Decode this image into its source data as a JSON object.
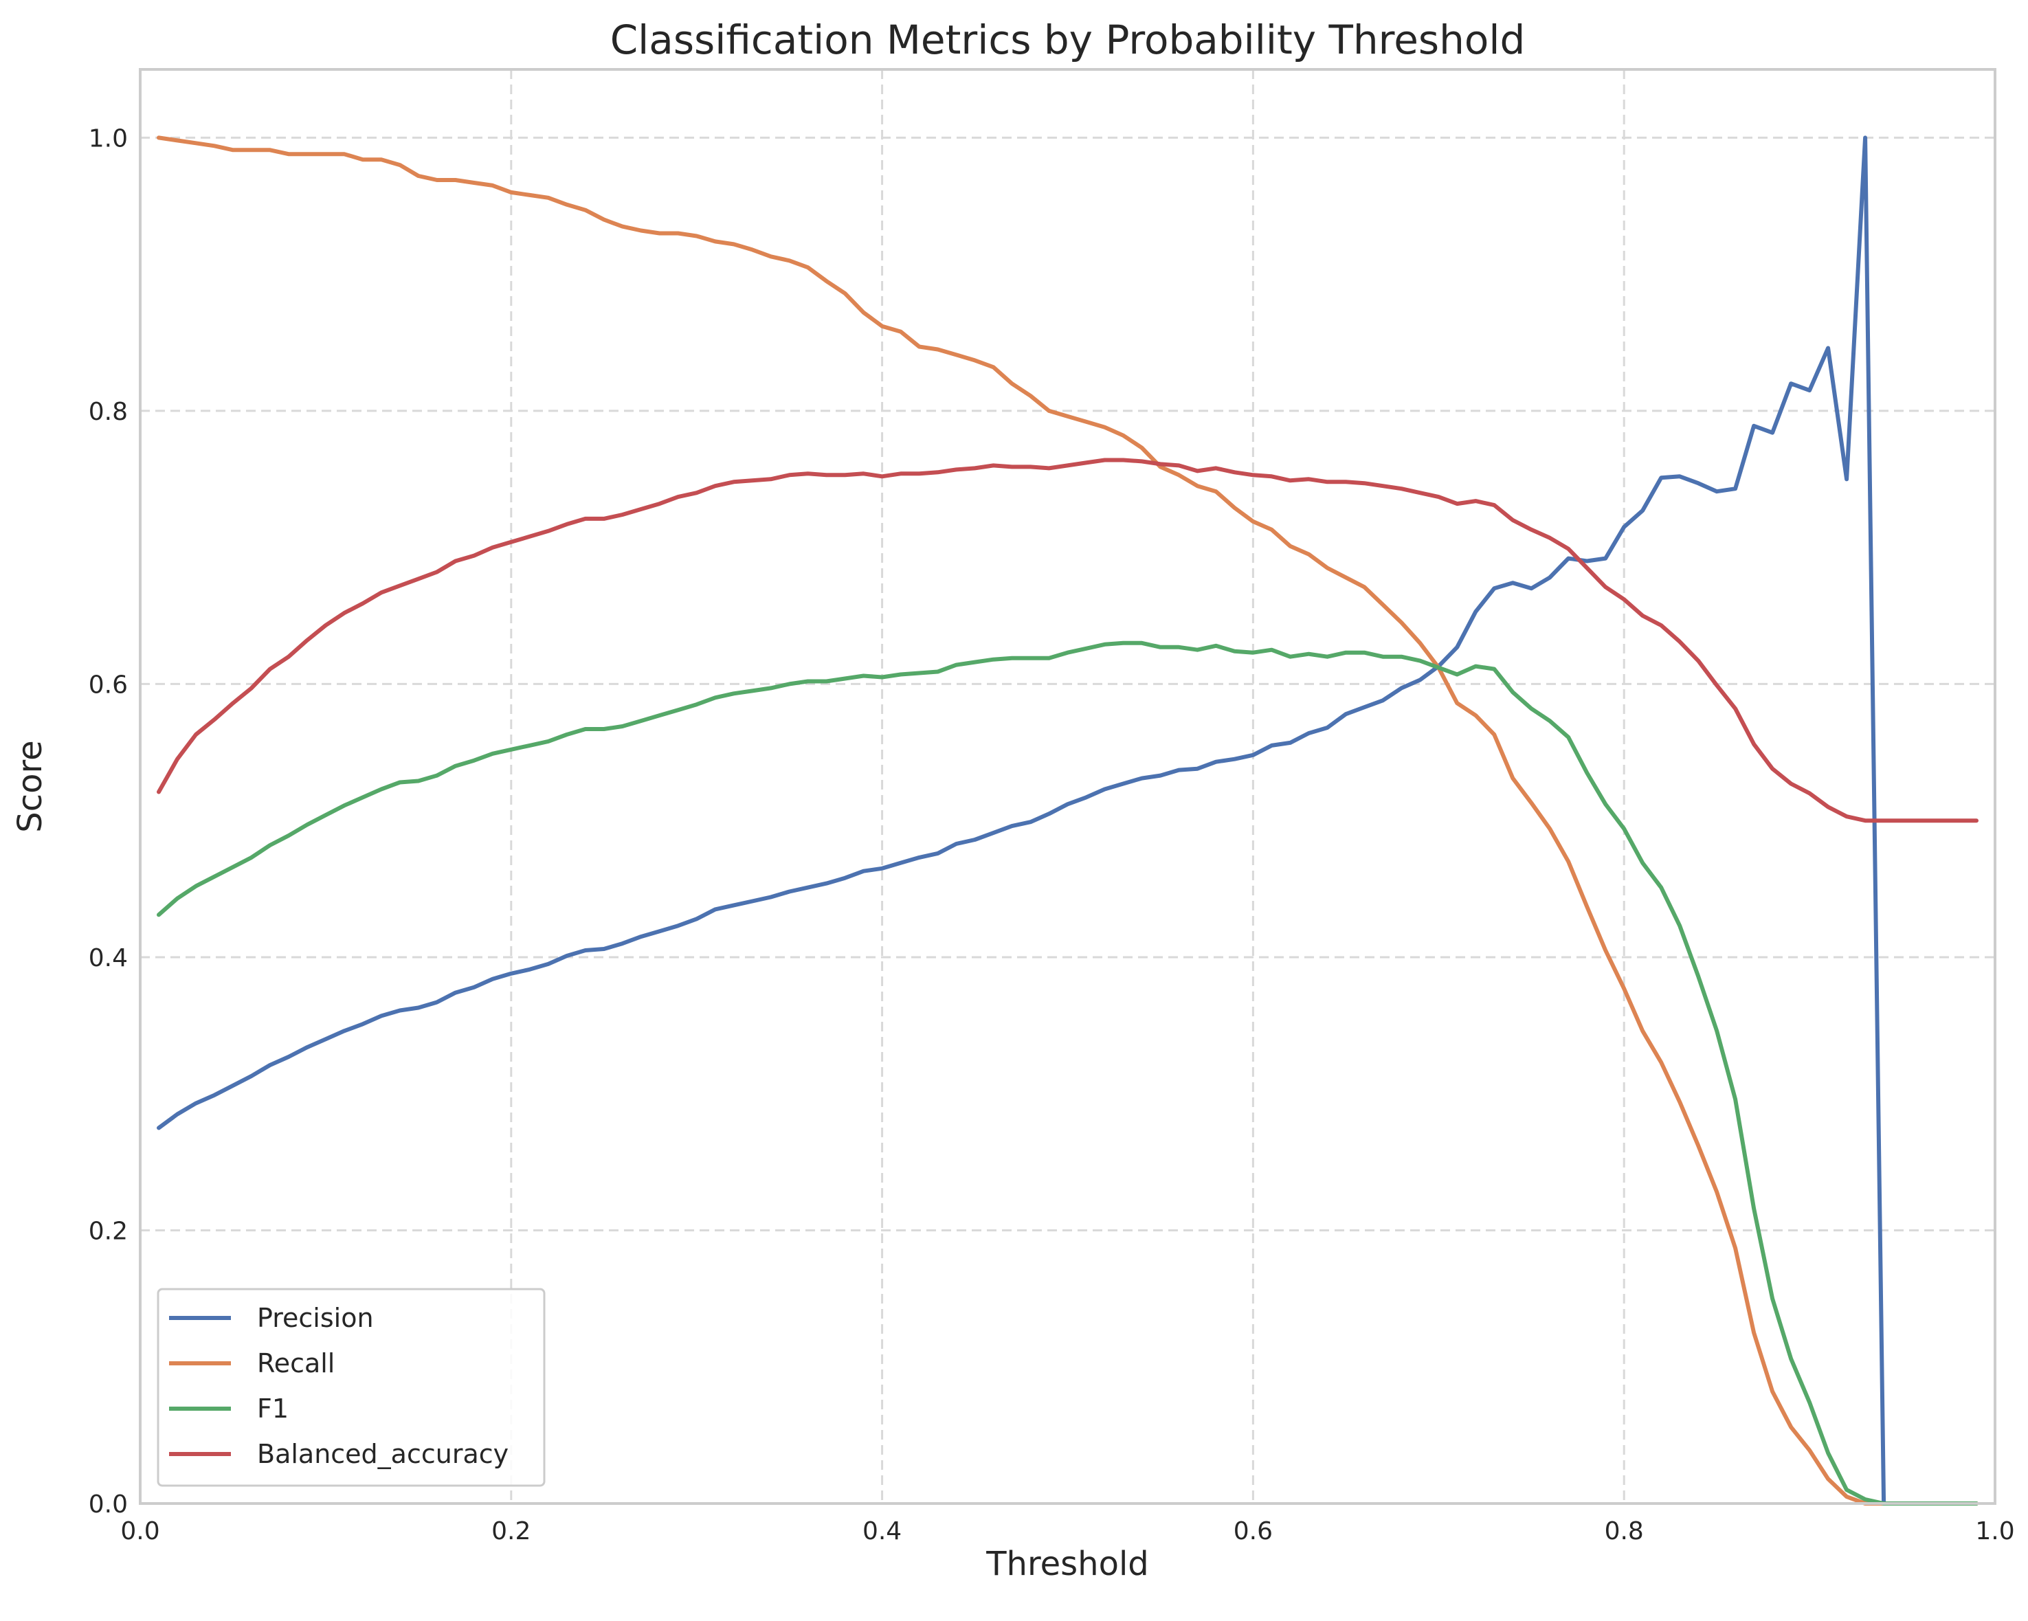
{
  "chart_data": {
    "type": "line",
    "title": "Classification Metrics by Probability Threshold",
    "xlabel": "Threshold",
    "ylabel": "Score",
    "xlim": [
      0.0,
      1.0
    ],
    "ylim": [
      0.0,
      1.05
    ],
    "xticks": [
      "0.0",
      "0.2",
      "0.4",
      "0.6",
      "0.8",
      "1.0"
    ],
    "yticks": [
      "0.0",
      "0.2",
      "0.4",
      "0.6",
      "0.8",
      "1.0"
    ],
    "grid": true,
    "legend_position": "lower-left",
    "x": [
      0.01,
      0.02,
      0.03,
      0.04,
      0.05,
      0.06,
      0.07,
      0.08,
      0.09,
      0.1,
      0.11,
      0.12,
      0.13,
      0.14,
      0.15,
      0.16,
      0.17,
      0.18,
      0.19,
      0.2,
      0.21,
      0.22,
      0.23,
      0.24,
      0.25,
      0.26,
      0.27,
      0.28,
      0.29,
      0.3,
      0.31,
      0.32,
      0.33,
      0.34,
      0.35,
      0.36,
      0.37,
      0.38,
      0.39,
      0.4,
      0.41,
      0.42,
      0.43,
      0.44,
      0.45,
      0.46,
      0.47,
      0.48,
      0.49,
      0.5,
      0.51,
      0.52,
      0.53,
      0.54,
      0.55,
      0.56,
      0.57,
      0.58,
      0.59,
      0.6,
      0.61,
      0.62,
      0.63,
      0.64,
      0.65,
      0.66,
      0.67,
      0.68,
      0.69,
      0.7,
      0.71,
      0.72,
      0.73,
      0.74,
      0.75,
      0.76,
      0.77,
      0.78,
      0.79,
      0.8,
      0.81,
      0.82,
      0.83,
      0.84,
      0.85,
      0.86,
      0.87,
      0.88,
      0.89,
      0.9,
      0.91,
      0.92,
      0.93,
      0.94,
      0.95,
      0.96,
      0.97,
      0.98,
      0.99
    ],
    "series": [
      {
        "name": "Precision",
        "color": "#4c72b0",
        "values": [
          0.275,
          0.285,
          0.293,
          0.299,
          0.306,
          0.313,
          0.321,
          0.327,
          0.334,
          0.34,
          0.346,
          0.351,
          0.357,
          0.361,
          0.363,
          0.367,
          0.374,
          0.378,
          0.384,
          0.388,
          0.391,
          0.395,
          0.401,
          0.405,
          0.406,
          0.41,
          0.415,
          0.419,
          0.423,
          0.428,
          0.435,
          0.438,
          0.441,
          0.444,
          0.448,
          0.451,
          0.454,
          0.458,
          0.463,
          0.465,
          0.469,
          0.473,
          0.476,
          0.483,
          0.486,
          0.491,
          0.496,
          0.499,
          0.505,
          0.512,
          0.517,
          0.523,
          0.527,
          0.531,
          0.533,
          0.537,
          0.538,
          0.543,
          0.545,
          0.548,
          0.555,
          0.557,
          0.564,
          0.568,
          0.578,
          0.583,
          0.588,
          0.597,
          0.603,
          0.613,
          0.627,
          0.653,
          0.67,
          0.674,
          0.67,
          0.678,
          0.692,
          0.69,
          0.692,
          0.715,
          0.727,
          0.751,
          0.752,
          0.747,
          0.741,
          0.743,
          0.789,
          0.784,
          0.82,
          0.815,
          0.846,
          0.75,
          1.0,
          0.0,
          0.0,
          0.0,
          0.0,
          0.0,
          0.0
        ]
      },
      {
        "name": "Recall",
        "color": "#dd8452",
        "values": [
          1.0,
          0.998,
          0.996,
          0.994,
          0.991,
          0.991,
          0.991,
          0.988,
          0.988,
          0.988,
          0.988,
          0.984,
          0.984,
          0.98,
          0.972,
          0.969,
          0.969,
          0.967,
          0.965,
          0.96,
          0.958,
          0.956,
          0.951,
          0.947,
          0.94,
          0.935,
          0.932,
          0.93,
          0.93,
          0.928,
          0.924,
          0.922,
          0.918,
          0.913,
          0.91,
          0.905,
          0.895,
          0.886,
          0.872,
          0.862,
          0.858,
          0.847,
          0.845,
          0.841,
          0.837,
          0.832,
          0.82,
          0.811,
          0.8,
          0.796,
          0.792,
          0.788,
          0.782,
          0.773,
          0.759,
          0.753,
          0.745,
          0.741,
          0.729,
          0.719,
          0.713,
          0.701,
          0.695,
          0.685,
          0.678,
          0.671,
          0.658,
          0.645,
          0.63,
          0.612,
          0.586,
          0.577,
          0.563,
          0.531,
          0.513,
          0.494,
          0.47,
          0.437,
          0.405,
          0.377,
          0.346,
          0.323,
          0.294,
          0.262,
          0.228,
          0.187,
          0.125,
          0.082,
          0.056,
          0.039,
          0.018,
          0.005,
          0.0,
          0.0,
          0.0,
          0.0,
          0.0,
          0.0,
          0.0
        ]
      },
      {
        "name": "F1",
        "color": "#55a868",
        "values": [
          0.431,
          0.443,
          0.452,
          0.459,
          0.466,
          0.473,
          0.482,
          0.489,
          0.497,
          0.504,
          0.511,
          0.517,
          0.523,
          0.528,
          0.529,
          0.533,
          0.54,
          0.544,
          0.549,
          0.552,
          0.555,
          0.558,
          0.563,
          0.567,
          0.567,
          0.569,
          0.573,
          0.577,
          0.581,
          0.585,
          0.59,
          0.593,
          0.595,
          0.597,
          0.6,
          0.602,
          0.602,
          0.604,
          0.606,
          0.605,
          0.607,
          0.608,
          0.609,
          0.614,
          0.616,
          0.618,
          0.619,
          0.619,
          0.619,
          0.623,
          0.626,
          0.629,
          0.63,
          0.63,
          0.627,
          0.627,
          0.625,
          0.628,
          0.624,
          0.623,
          0.625,
          0.62,
          0.622,
          0.62,
          0.623,
          0.623,
          0.62,
          0.62,
          0.617,
          0.612,
          0.607,
          0.613,
          0.611,
          0.594,
          0.582,
          0.573,
          0.561,
          0.535,
          0.512,
          0.494,
          0.469,
          0.451,
          0.423,
          0.386,
          0.346,
          0.296,
          0.216,
          0.15,
          0.106,
          0.074,
          0.037,
          0.01,
          0.003,
          0.0,
          0.0,
          0.0,
          0.0,
          0.0,
          0.0
        ]
      },
      {
        "name": "Balanced_accuracy",
        "color": "#c44e52",
        "values": [
          0.521,
          0.545,
          0.563,
          0.574,
          0.586,
          0.597,
          0.611,
          0.62,
          0.632,
          0.643,
          0.652,
          0.659,
          0.667,
          0.672,
          0.677,
          0.682,
          0.69,
          0.694,
          0.7,
          0.704,
          0.708,
          0.712,
          0.717,
          0.721,
          0.721,
          0.724,
          0.728,
          0.732,
          0.737,
          0.74,
          0.745,
          0.748,
          0.749,
          0.75,
          0.753,
          0.754,
          0.753,
          0.753,
          0.754,
          0.752,
          0.754,
          0.754,
          0.755,
          0.757,
          0.758,
          0.76,
          0.759,
          0.759,
          0.758,
          0.76,
          0.762,
          0.764,
          0.764,
          0.763,
          0.761,
          0.76,
          0.756,
          0.758,
          0.755,
          0.753,
          0.752,
          0.749,
          0.75,
          0.748,
          0.748,
          0.747,
          0.745,
          0.743,
          0.74,
          0.737,
          0.732,
          0.734,
          0.731,
          0.72,
          0.713,
          0.707,
          0.699,
          0.685,
          0.671,
          0.662,
          0.65,
          0.643,
          0.631,
          0.617,
          0.599,
          0.582,
          0.556,
          0.538,
          0.527,
          0.52,
          0.51,
          0.503,
          0.5,
          0.5,
          0.5,
          0.5,
          0.5,
          0.5,
          0.5
        ]
      }
    ]
  }
}
